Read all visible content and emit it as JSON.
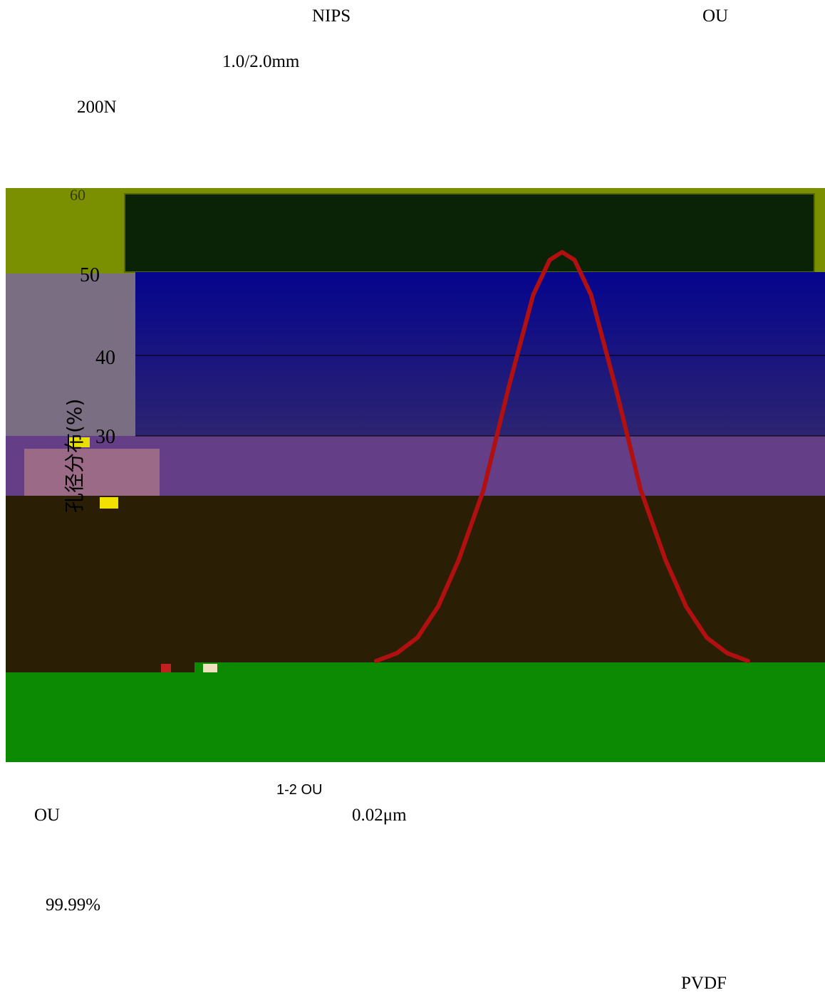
{
  "page": {
    "line1_a": "NIPS",
    "line1_b": "OU",
    "line2": "1.0/2.0mm",
    "line3": "200N",
    "caption": "1-2 OU",
    "line4_a": "OU",
    "line4_b": "0.02μm",
    "line5": "99.99%",
    "line6": "PVDF"
  },
  "chart_data": {
    "type": "line",
    "ylabel": "孔径分布(%)",
    "y_ticks": [
      "50",
      "40",
      "30"
    ],
    "garbled_ticks": [
      "60",
      "50"
    ],
    "series": [
      {
        "values": [
          [
            0.0,
            0.0
          ],
          [
            0.5,
            1.0
          ],
          [
            1.0,
            3.0
          ],
          [
            1.5,
            7.0
          ],
          [
            2.0,
            13.0
          ],
          [
            2.6,
            22.0
          ],
          [
            3.2,
            35.0
          ],
          [
            3.8,
            47.0
          ],
          [
            4.2,
            51.5
          ],
          [
            4.5,
            52.5
          ],
          [
            4.8,
            51.5
          ],
          [
            5.2,
            47.0
          ],
          [
            5.8,
            35.0
          ],
          [
            6.4,
            22.0
          ],
          [
            7.0,
            13.0
          ],
          [
            7.5,
            7.0
          ],
          [
            8.0,
            3.0
          ],
          [
            8.5,
            1.0
          ],
          [
            9.0,
            0.0
          ]
        ]
      }
    ]
  }
}
